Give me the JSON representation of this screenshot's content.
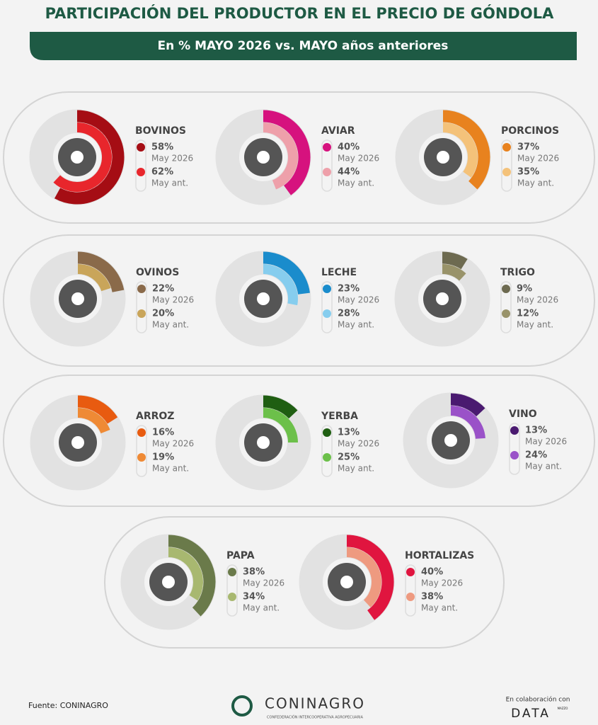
{
  "header": {
    "title": "PARTICIPACIÓN DEL PRODUCTOR EN EL PRECIO DE GÓNDOLA",
    "subtitle": "En % MAYO 2026 vs. MAYO años anteriores"
  },
  "chart_data": [
    {
      "type": "radial-bar",
      "title": "BOVINOS",
      "ylim": [
        0,
        100
      ],
      "series": [
        {
          "name": "May 2026",
          "color": "#a50d14",
          "values": [
            58
          ],
          "value_labels": [
            "58%"
          ]
        },
        {
          "name": "May ant.",
          "color": "#e8262c",
          "values": [
            62
          ],
          "value_labels": [
            "62%"
          ]
        }
      ]
    },
    {
      "type": "radial-bar",
      "title": "AVIAR",
      "ylim": [
        0,
        100
      ],
      "series": [
        {
          "name": "May 2026",
          "color": "#d6127e",
          "values": [
            40
          ],
          "value_labels": [
            "40%"
          ]
        },
        {
          "name": "May ant.",
          "color": "#eea0aa",
          "values": [
            44
          ],
          "value_labels": [
            "44%"
          ]
        }
      ]
    },
    {
      "type": "radial-bar",
      "title": "PORCINOS",
      "ylim": [
        0,
        100
      ],
      "series": [
        {
          "name": "May 2026",
          "color": "#e8821e",
          "values": [
            37
          ],
          "value_labels": [
            "37%"
          ]
        },
        {
          "name": "May ant.",
          "color": "#f4c27a",
          "values": [
            35
          ],
          "value_labels": [
            "35%"
          ]
        }
      ]
    },
    {
      "type": "radial-bar",
      "title": "OVINOS",
      "ylim": [
        0,
        100
      ],
      "series": [
        {
          "name": "May 2026",
          "color": "#8a6a4a",
          "values": [
            22
          ],
          "value_labels": [
            "22%"
          ]
        },
        {
          "name": "May ant.",
          "color": "#c9a55a",
          "values": [
            20
          ],
          "value_labels": [
            "20%"
          ]
        }
      ]
    },
    {
      "type": "radial-bar",
      "title": "LECHE",
      "ylim": [
        0,
        100
      ],
      "series": [
        {
          "name": "May 2026",
          "color": "#1a8ccc",
          "values": [
            23
          ],
          "value_labels": [
            "23%"
          ]
        },
        {
          "name": "May ant.",
          "color": "#86cdee",
          "values": [
            28
          ],
          "value_labels": [
            "28%"
          ]
        }
      ]
    },
    {
      "type": "radial-bar",
      "title": "TRIGO",
      "ylim": [
        0,
        100
      ],
      "series": [
        {
          "name": "May 2026",
          "color": "#6d6a50",
          "values": [
            9
          ],
          "value_labels": [
            "9%"
          ]
        },
        {
          "name": "May ant.",
          "color": "#99936a",
          "values": [
            12
          ],
          "value_labels": [
            "12%"
          ]
        }
      ]
    },
    {
      "type": "radial-bar",
      "title": "ARROZ",
      "ylim": [
        0,
        100
      ],
      "series": [
        {
          "name": "May 2026",
          "color": "#e85b10",
          "values": [
            16
          ],
          "value_labels": [
            "16%"
          ]
        },
        {
          "name": "May ant.",
          "color": "#ef8a35",
          "values": [
            19
          ],
          "value_labels": [
            "19%"
          ]
        }
      ]
    },
    {
      "type": "radial-bar",
      "title": "YERBA",
      "ylim": [
        0,
        100
      ],
      "series": [
        {
          "name": "May 2026",
          "color": "#1f5e12",
          "values": [
            13
          ],
          "value_labels": [
            "13%"
          ]
        },
        {
          "name": "May ant.",
          "color": "#6cc04a",
          "values": [
            25
          ],
          "value_labels": [
            "25%"
          ]
        }
      ]
    },
    {
      "type": "radial-bar",
      "title": "VINO",
      "ylim": [
        0,
        100
      ],
      "series": [
        {
          "name": "May 2026",
          "color": "#4a1a70",
          "values": [
            13
          ],
          "value_labels": [
            "13%"
          ]
        },
        {
          "name": "May ant.",
          "color": "#9a52c8",
          "values": [
            24
          ],
          "value_labels": [
            "24%"
          ]
        }
      ]
    },
    {
      "type": "radial-bar",
      "title": "PAPA",
      "ylim": [
        0,
        100
      ],
      "series": [
        {
          "name": "May 2026",
          "color": "#6a7a4a",
          "values": [
            38
          ],
          "value_labels": [
            "38%"
          ]
        },
        {
          "name": "May ant.",
          "color": "#a8b870",
          "values": [
            34
          ],
          "value_labels": [
            "34%"
          ]
        }
      ]
    },
    {
      "type": "radial-bar",
      "title": "HORTALIZAS",
      "ylim": [
        0,
        100
      ],
      "series": [
        {
          "name": "May 2026",
          "color": "#e0153f",
          "values": [
            40
          ],
          "value_labels": [
            "40%"
          ]
        },
        {
          "name": "May ant.",
          "color": "#ee9a80",
          "values": [
            38
          ],
          "value_labels": [
            "38%"
          ]
        }
      ]
    }
  ],
  "footer": {
    "source": "Fuente: CONINAGRO",
    "logo": "CONINAGRO",
    "logo_sub": "CONFEDERACIÓN INTERCOOPERATIVA AGROPECUARIA",
    "collab": "En colaboración con",
    "collab_logo": "DATA",
    "collab_logo_sup": "MAZZO"
  }
}
